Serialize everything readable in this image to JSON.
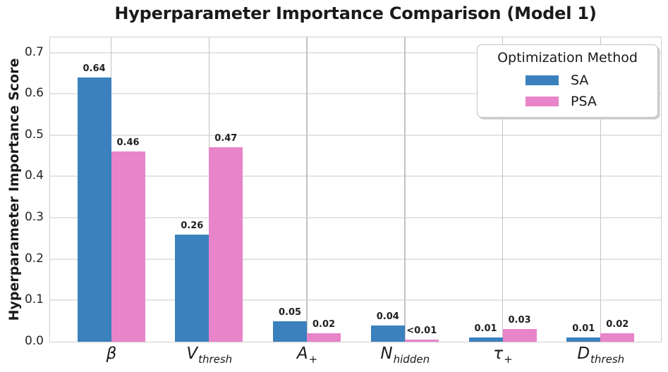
{
  "title": "Hyperparameter Importance Comparison (Model 1)",
  "ylabel": "Hyperparameter Importance Score",
  "legend": {
    "title": "Optimization Method",
    "entries": [
      {
        "label": "SA",
        "color": "#3A81BD"
      },
      {
        "label": "PSA",
        "color": "#E884C9"
      }
    ]
  },
  "chart_data": {
    "type": "bar",
    "title": "Hyperparameter Importance Comparison (Model 1)",
    "xlabel": "",
    "ylabel": "Hyperparameter Importance Score",
    "categories": [
      {
        "base": "β",
        "sub": ""
      },
      {
        "base": "V",
        "sub": "thresh"
      },
      {
        "base": "A",
        "sub": "+"
      },
      {
        "base": "N",
        "sub": "hidden"
      },
      {
        "base": "τ",
        "sub": "+"
      },
      {
        "base": "D",
        "sub": "thresh"
      }
    ],
    "series": [
      {
        "name": "SA",
        "color": "#3A81BD",
        "values": [
          0.64,
          0.26,
          0.05,
          0.04,
          0.01,
          0.01
        ],
        "labels": [
          "0.64",
          "0.26",
          "0.05",
          "0.04",
          "0.01",
          "0.01"
        ]
      },
      {
        "name": "PSA",
        "color": "#E884C9",
        "values": [
          0.46,
          0.47,
          0.02,
          0.005,
          0.03,
          0.02
        ],
        "labels": [
          "0.46",
          "0.47",
          "0.02",
          "<0.01",
          "0.03",
          "0.02"
        ]
      }
    ],
    "yticks": [
      "0.0",
      "0.1",
      "0.2",
      "0.3",
      "0.4",
      "0.5",
      "0.6",
      "0.7"
    ],
    "ylim": [
      0,
      0.735
    ],
    "grid": "horizontal+vertical",
    "legend_position": "upper-right"
  }
}
